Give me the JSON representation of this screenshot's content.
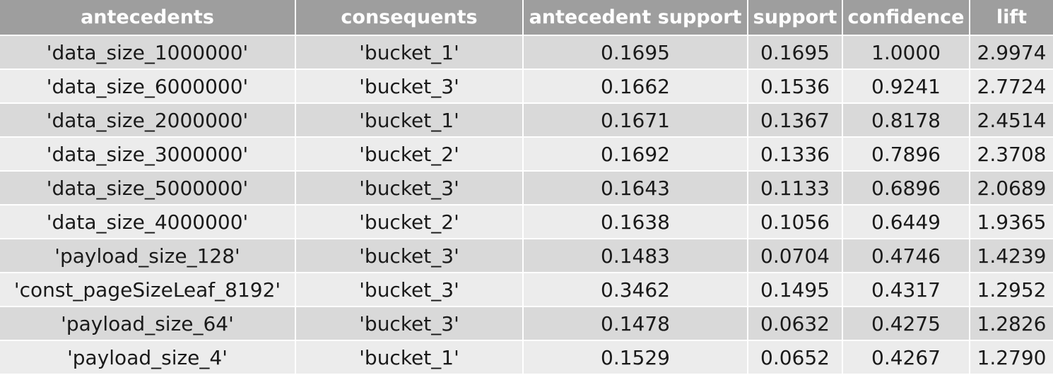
{
  "table": {
    "headers": [
      "antecedents",
      "consequents",
      "antecedent support",
      "support",
      "confidence",
      "lift"
    ],
    "rows": [
      [
        "'data_size_1000000'",
        "'bucket_1'",
        "0.1695",
        "0.1695",
        "1.0000",
        "2.9974"
      ],
      [
        "'data_size_6000000'",
        "'bucket_3'",
        "0.1662",
        "0.1536",
        "0.9241",
        "2.7724"
      ],
      [
        "'data_size_2000000'",
        "'bucket_1'",
        "0.1671",
        "0.1367",
        "0.8178",
        "2.4514"
      ],
      [
        "'data_size_3000000'",
        "'bucket_2'",
        "0.1692",
        "0.1336",
        "0.7896",
        "2.3708"
      ],
      [
        "'data_size_5000000'",
        "'bucket_3'",
        "0.1643",
        "0.1133",
        "0.6896",
        "2.0689"
      ],
      [
        "'data_size_4000000'",
        "'bucket_2'",
        "0.1638",
        "0.1056",
        "0.6449",
        "1.9365"
      ],
      [
        "'payload_size_128'",
        "'bucket_3'",
        "0.1483",
        "0.0704",
        "0.4746",
        "1.4239"
      ],
      [
        "'const_pageSizeLeaf_8192'",
        "'bucket_3'",
        "0.3462",
        "0.1495",
        "0.4317",
        "1.2952"
      ],
      [
        "'payload_size_64'",
        "'bucket_3'",
        "0.1478",
        "0.0632",
        "0.4275",
        "1.2826"
      ],
      [
        "'payload_size_4'",
        "'bucket_1'",
        "0.1529",
        "0.0652",
        "0.4267",
        "1.2790"
      ]
    ]
  },
  "colors": {
    "header_bg": "#9e9e9e",
    "row_dark": "#d9d9d9",
    "row_light": "#ececec"
  }
}
